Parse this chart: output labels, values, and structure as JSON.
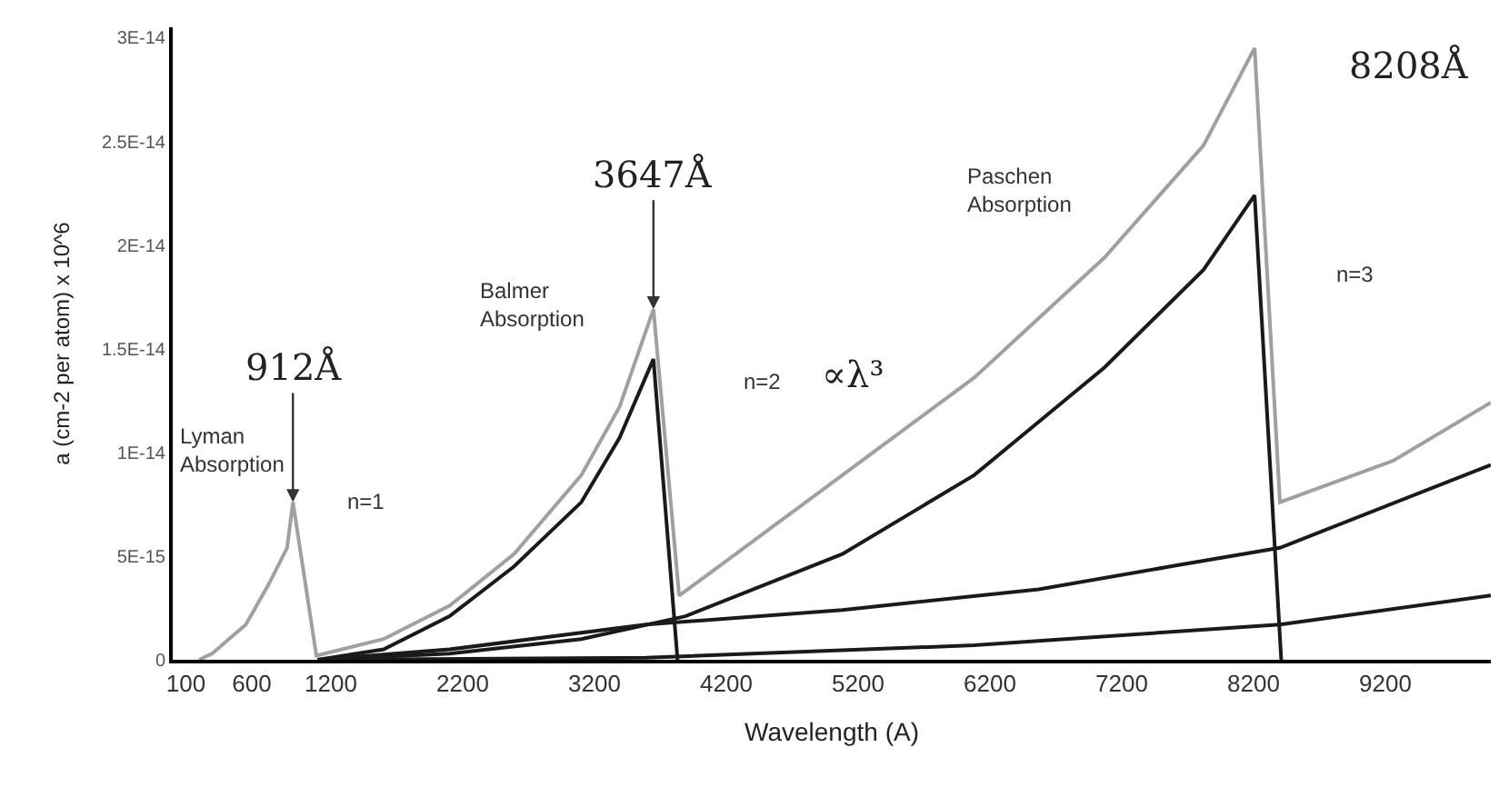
{
  "chart_data": {
    "type": "line",
    "xlabel": "Wavelength (A)",
    "ylabel": "a (cm-2 per atom) x 10^6",
    "xlim": [
      0,
      10000
    ],
    "xticks": [
      100,
      600,
      1200,
      2200,
      3200,
      4200,
      5200,
      6200,
      7200,
      8200,
      9200
    ],
    "ylim": [
      0,
      3.05e-14
    ],
    "yticks": [
      {
        "value": 0,
        "label": "0"
      },
      {
        "value": 5e-15,
        "label": "5E-15"
      },
      {
        "value": 1e-14,
        "label": "1E-14"
      },
      {
        "value": 1.5e-14,
        "label": "1.5E-14"
      },
      {
        "value": 2e-14,
        "label": "2E-14"
      },
      {
        "value": 2.5e-14,
        "label": "2.5E-14"
      },
      {
        "value": 3e-14,
        "label": "3E-14"
      }
    ],
    "marker": "none",
    "line_style": "solid",
    "series": [
      {
        "color": "#a0a0a0",
        "x": [
          200,
          300,
          555,
          725,
          868,
          912,
          1090,
          1600,
          2100,
          2590,
          3100,
          3390,
          3647,
          3842,
          4080,
          5080,
          6080,
          7070,
          7820,
          8208,
          8400,
          9260,
          10000
        ],
        "values": [
          0,
          3e-16,
          1.7e-15,
          3.6e-15,
          5.4e-15,
          7.6e-15,
          2e-16,
          1e-15,
          2.6e-15,
          5.1e-15,
          8.9e-15,
          1.22e-14,
          1.69e-14,
          3.1e-15,
          4.2e-15,
          8.9e-15,
          1.36e-14,
          1.94e-14,
          2.48e-14,
          2.95e-14,
          7.6e-15,
          9.6e-15,
          1.24e-14
        ]
      },
      {
        "color": "#1a1a1a",
        "x": [
          1100,
          1600,
          2100,
          2590,
          3100,
          3390,
          3647,
          3830
        ],
        "values": [
          0,
          5e-16,
          2.1e-15,
          4.5e-15,
          7.6e-15,
          1.07e-14,
          1.45e-14,
          0
        ]
      },
      {
        "color": "#1a1a1a",
        "x": [
          1100,
          2100,
          3100,
          3890,
          5080,
          6080,
          7070,
          7820,
          8208,
          8410
        ],
        "values": [
          0,
          3e-16,
          1e-15,
          2.1e-15,
          5.1e-15,
          8.9e-15,
          1.41e-14,
          1.88e-14,
          2.24e-14,
          0
        ]
      },
      {
        "color": "#1a1a1a",
        "x": [
          1100,
          2100,
          3590,
          5080,
          6570,
          7570,
          8400,
          10000
        ],
        "values": [
          0,
          5e-16,
          1.7e-15,
          2.4e-15,
          3.4e-15,
          4.5e-15,
          5.4e-15,
          9.4e-15
        ]
      },
      {
        "color": "#1a1a1a",
        "x": [
          1100,
          3590,
          6080,
          8400,
          10000
        ],
        "values": [
          0,
          1e-16,
          7e-16,
          1.7e-15,
          3.1e-15
        ]
      }
    ],
    "annotations": [
      "Lyman\nAbsorption",
      "Balmer\nAbsorption",
      "Paschen\nAbsorption",
      "n=1",
      "n=2",
      "n=3",
      {
        "text": "912Å",
        "x": 912,
        "y": 7.6e-15
      },
      {
        "text": "3647Å",
        "x": 3647,
        "y": 1.69e-14
      },
      "8208Å",
      "∝λ³"
    ]
  }
}
